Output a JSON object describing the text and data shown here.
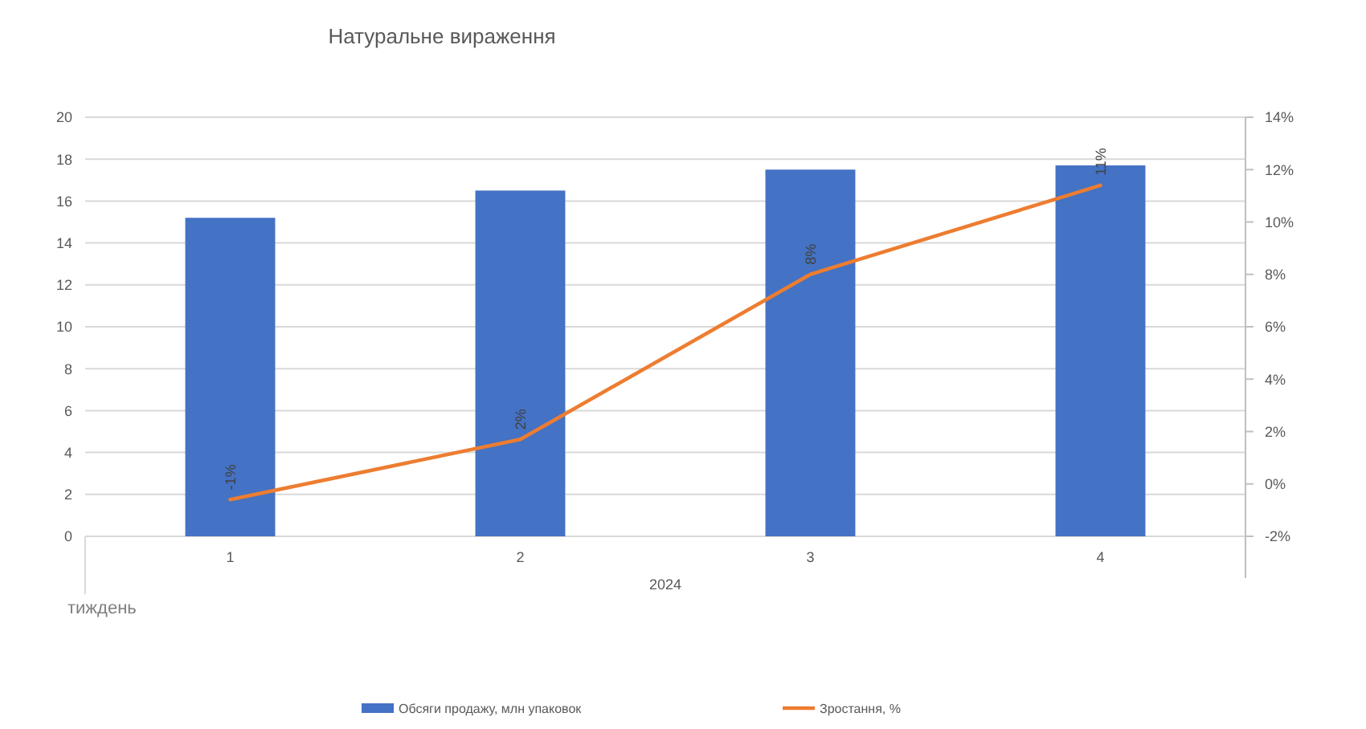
{
  "chart_data": {
    "type": "bar",
    "title": "Натуральне вираження",
    "xlabel": "тиждень",
    "categories": [
      "1",
      "2",
      "3",
      "4"
    ],
    "series": [
      {
        "name": "Обсяги продажу, млн упаковок",
        "color": "#4472c4",
        "values": [
          15.2,
          16.5,
          17.5,
          17.7
        ]
      },
      {
        "name": "Зростання, %",
        "type": "line",
        "axis": "y2",
        "color": "#ed7d31",
        "values": [
          -0.6,
          1.7,
          8.0,
          11.4
        ],
        "value_labels": [
          "-1%",
          "2%",
          "8%",
          "11%"
        ]
      }
    ],
    "ylim": [
      0,
      20
    ],
    "yticks": [
      0,
      2,
      4,
      6,
      8,
      10,
      12,
      14,
      16,
      18,
      20
    ],
    "y2lim": [
      -2,
      14
    ],
    "y2ticks": [
      {
        "value": -2,
        "label": "-2%"
      },
      {
        "value": 0,
        "label": "0%"
      },
      {
        "value": 2,
        "label": "2%"
      },
      {
        "value": 4,
        "label": "4%"
      },
      {
        "value": 6,
        "label": "6%"
      },
      {
        "value": 8,
        "label": "8%"
      },
      {
        "value": 10,
        "label": "10%"
      },
      {
        "value": 12,
        "label": "12%"
      },
      {
        "value": 14,
        "label": "14%"
      }
    ],
    "grid": "y",
    "legend": "bottom",
    "annotations": [
      "2024"
    ]
  }
}
